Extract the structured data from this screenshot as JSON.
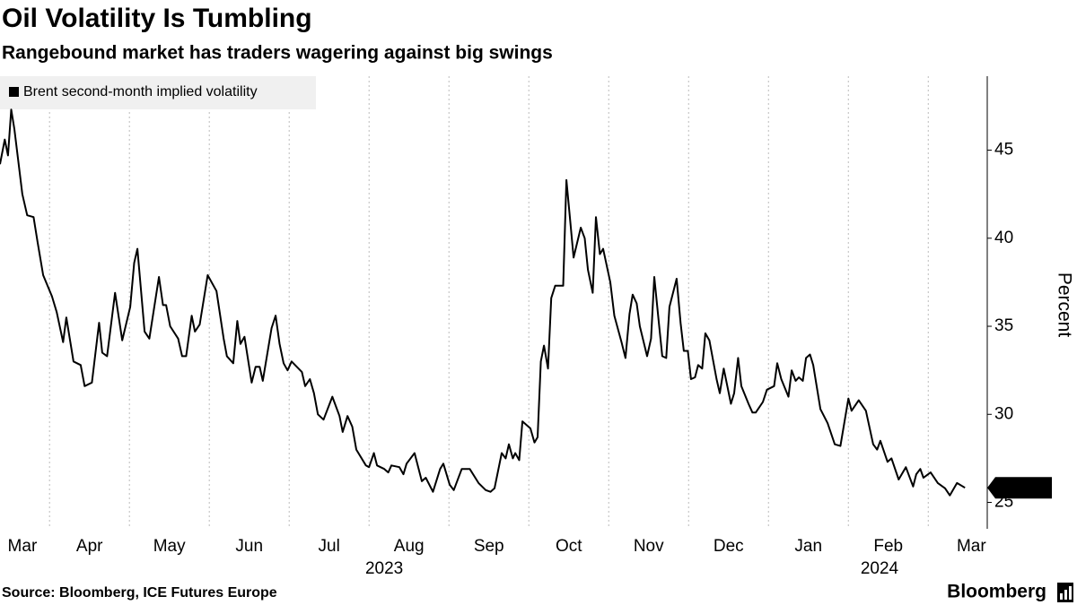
{
  "chart_data": {
    "type": "line",
    "title": "Oil Volatility Is Tumbling",
    "subtitle": "Rangebound market has traders wagering against big swings",
    "y_axis_label": "Percent",
    "source": "Source: Bloomberg, ICE Futures Europe",
    "brand": "Bloomberg",
    "xlim": [
      0.38,
      12.57
    ],
    "xticks": [
      {
        "value": 0.66,
        "label": "Mar"
      },
      {
        "value": 1.5,
        "label": "Apr"
      },
      {
        "value": 2.5,
        "label": "May"
      },
      {
        "value": 3.5,
        "label": "Jun"
      },
      {
        "value": 4.5,
        "label": "Jul"
      },
      {
        "value": 5.5,
        "label": "Aug"
      },
      {
        "value": 6.5,
        "label": "Sep"
      },
      {
        "value": 7.5,
        "label": "Oct"
      },
      {
        "value": 8.5,
        "label": "Nov"
      },
      {
        "value": 9.5,
        "label": "Dec"
      },
      {
        "value": 10.5,
        "label": "Jan"
      },
      {
        "value": 11.5,
        "label": "Feb"
      },
      {
        "value": 12.54,
        "label": "Mar"
      }
    ],
    "year_labels": [
      {
        "value": 5.19,
        "label": "2023"
      },
      {
        "value": 11.39,
        "label": "2024"
      }
    ],
    "xgrid": [
      1,
      2,
      3,
      4,
      5,
      6,
      7,
      8,
      9,
      10,
      11,
      12
    ],
    "ylim": [
      23.5,
      49.2
    ],
    "yticks": [
      25,
      30,
      35,
      40,
      45
    ],
    "y_axis_side": "right",
    "legend_position": "top-left",
    "x": [
      0.38,
      0.44,
      0.48,
      0.52,
      0.56,
      0.66,
      0.72,
      0.8,
      0.85,
      0.92,
      1.03,
      1.09,
      1.17,
      1.21,
      1.3,
      1.39,
      1.44,
      1.53,
      1.62,
      1.66,
      1.72,
      1.82,
      1.91,
      2.01,
      2.06,
      2.1,
      2.19,
      2.25,
      2.37,
      2.42,
      2.46,
      2.51,
      2.61,
      2.66,
      2.71,
      2.78,
      2.82,
      2.88,
      2.98,
      3.09,
      3.18,
      3.22,
      3.3,
      3.35,
      3.39,
      3.44,
      3.53,
      3.58,
      3.63,
      3.67,
      3.78,
      3.83,
      3.88,
      3.93,
      3.98,
      4.03,
      4.16,
      4.2,
      4.26,
      4.31,
      4.36,
      4.43,
      4.54,
      4.63,
      4.67,
      4.73,
      4.79,
      4.84,
      4.96,
      5.0,
      5.06,
      5.1,
      5.19,
      5.24,
      5.28,
      5.38,
      5.43,
      5.47,
      5.57,
      5.66,
      5.71,
      5.8,
      5.89,
      5.93,
      6.01,
      6.06,
      6.16,
      6.26,
      6.37,
      6.46,
      6.52,
      6.57,
      6.66,
      6.71,
      6.75,
      6.8,
      6.83,
      6.88,
      6.92,
      7.02,
      7.07,
      7.11,
      7.15,
      7.19,
      7.24,
      7.28,
      7.33,
      7.43,
      7.47,
      7.52,
      7.56,
      7.65,
      7.7,
      7.74,
      7.8,
      7.84,
      7.89,
      7.93,
      8.02,
      8.07,
      8.16,
      8.21,
      8.26,
      8.3,
      8.35,
      8.39,
      8.48,
      8.53,
      8.57,
      8.63,
      8.67,
      8.72,
      8.76,
      8.85,
      8.9,
      8.94,
      8.99,
      9.03,
      9.08,
      9.12,
      9.17,
      9.21,
      9.26,
      9.35,
      9.39,
      9.44,
      9.53,
      9.57,
      9.62,
      9.66,
      9.75,
      9.8,
      9.84,
      9.93,
      9.98,
      10.07,
      10.11,
      10.16,
      10.25,
      10.29,
      10.34,
      10.38,
      10.43,
      10.47,
      10.52,
      10.56,
      10.65,
      10.74,
      10.83,
      10.9,
      11.0,
      11.04,
      11.13,
      11.22,
      11.31,
      11.36,
      11.4,
      11.49,
      11.54,
      11.63,
      11.72,
      11.81,
      11.85,
      11.9,
      11.94,
      12.03,
      12.12,
      12.21,
      12.27,
      12.36,
      12.46
    ],
    "series": [
      {
        "name": "Brent second-month implied volatility",
        "color": "#000000",
        "values": [
          44.2,
          45.6,
          44.7,
          47.3,
          46.2,
          42.5,
          41.3,
          41.2,
          39.8,
          37.9,
          36.7,
          35.8,
          34.1,
          35.5,
          33.0,
          32.8,
          31.6,
          31.8,
          35.2,
          33.5,
          33.3,
          36.9,
          34.2,
          36.1,
          38.6,
          39.4,
          34.7,
          34.3,
          37.8,
          36.2,
          36.2,
          35.0,
          34.3,
          33.3,
          33.3,
          35.6,
          34.7,
          35.1,
          37.9,
          37.0,
          34.3,
          33.3,
          32.9,
          35.3,
          34.0,
          34.4,
          31.8,
          32.7,
          32.7,
          31.9,
          34.9,
          35.6,
          34.0,
          32.9,
          32.5,
          33.0,
          32.4,
          31.6,
          32.0,
          31.2,
          30.0,
          29.7,
          31.0,
          29.9,
          29.0,
          29.9,
          29.3,
          28.0,
          27.1,
          27.0,
          27.8,
          27.1,
          26.9,
          26.7,
          27.1,
          27.0,
          26.6,
          27.2,
          27.8,
          26.2,
          26.4,
          25.6,
          26.9,
          27.2,
          26.0,
          25.7,
          26.9,
          26.9,
          26.1,
          25.7,
          25.6,
          25.8,
          27.8,
          27.5,
          28.3,
          27.5,
          27.8,
          27.4,
          29.6,
          29.2,
          28.4,
          28.7,
          33.0,
          33.9,
          32.6,
          36.6,
          37.3,
          37.3,
          43.3,
          40.9,
          38.9,
          40.6,
          40.0,
          38.2,
          36.9,
          41.2,
          39.1,
          39.4,
          37.5,
          35.6,
          34.1,
          33.2,
          35.7,
          36.8,
          36.3,
          35.0,
          33.3,
          34.3,
          37.8,
          35.1,
          33.3,
          33.2,
          36.1,
          37.7,
          35.2,
          33.6,
          33.6,
          32.0,
          32.1,
          32.8,
          32.6,
          34.6,
          34.2,
          32.0,
          31.2,
          32.6,
          30.6,
          31.2,
          33.2,
          31.6,
          30.6,
          30.1,
          30.1,
          30.7,
          31.4,
          31.6,
          32.9,
          32.0,
          31.0,
          32.5,
          31.9,
          32.1,
          31.9,
          33.2,
          33.4,
          32.8,
          30.3,
          29.5,
          28.3,
          28.2,
          30.9,
          30.2,
          30.8,
          30.2,
          28.3,
          28.0,
          28.5,
          27.3,
          27.5,
          26.3,
          27.0,
          25.9,
          26.6,
          26.9,
          26.4,
          26.7,
          26.1,
          25.8,
          25.4,
          26.1,
          25.83
        ]
      }
    ]
  }
}
